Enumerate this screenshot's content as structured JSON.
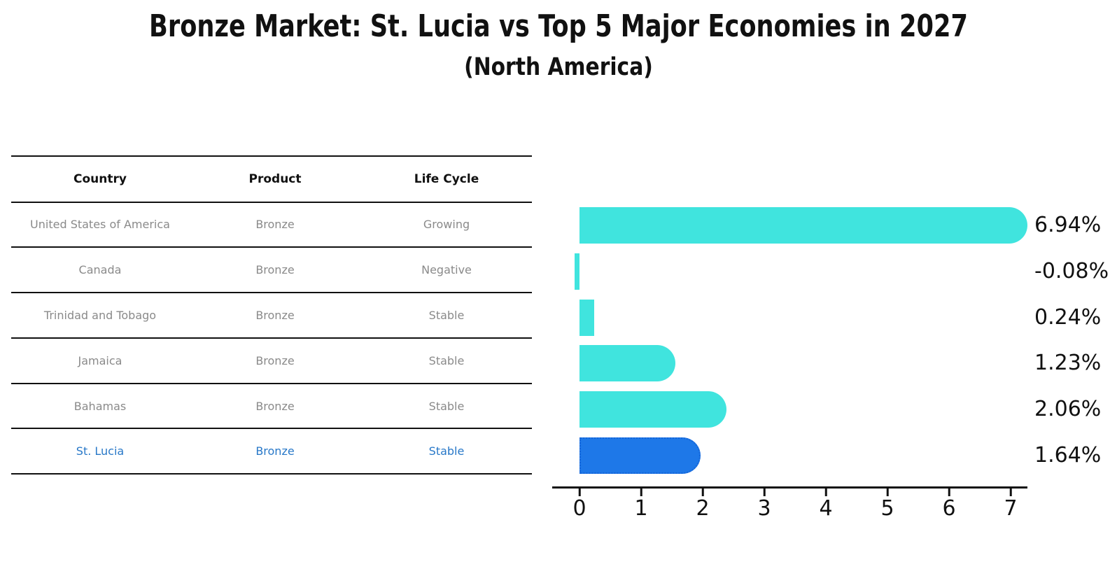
{
  "title": "Bronze Market: St. Lucia vs Top 5 Major Economies in 2027",
  "subtitle": "(North America)",
  "table": {
    "headers": {
      "country": "Country",
      "product": "Product",
      "life_cycle": "Life Cycle"
    },
    "rows": [
      {
        "country": "United States of America",
        "product": "Bronze",
        "life_cycle": "Growing"
      },
      {
        "country": "Canada",
        "product": "Bronze",
        "life_cycle": "Negative"
      },
      {
        "country": "Trinidad and Tobago",
        "product": "Bronze",
        "life_cycle": "Stable"
      },
      {
        "country": "Jamaica",
        "product": "Bronze",
        "life_cycle": "Stable"
      },
      {
        "country": "Bahamas",
        "product": "Bronze",
        "life_cycle": "Stable"
      },
      {
        "country": "St. Lucia",
        "product": "Bronze",
        "life_cycle": "Stable"
      }
    ],
    "highlighted_row": "St. Lucia"
  },
  "chart_data": {
    "type": "bar",
    "orientation": "horizontal",
    "categories": [
      "United States of America",
      "Canada",
      "Trinidad and Tobago",
      "Jamaica",
      "Bahamas",
      "St. Lucia"
    ],
    "values": [
      6.94,
      -0.08,
      0.24,
      1.23,
      2.06,
      1.64
    ],
    "value_labels": [
      "6.94%",
      "-0.08%",
      "0.24%",
      "1.23%",
      "2.06%",
      "1.64%"
    ],
    "title": "Bronze Market: St. Lucia vs Top 5 Major Economies in 2027",
    "subtitle": "(North America)",
    "xlabel": "",
    "ylabel": "",
    "xlim": [
      0,
      7
    ],
    "xticks": [
      0,
      1,
      2,
      3,
      4,
      5,
      6,
      7
    ],
    "grid": false,
    "legend": false,
    "highlight_index": 5
  },
  "colors": {
    "ink": "#111111",
    "row-text": "#8a8a8a",
    "highlight-text": "#2878c8",
    "bar-cyan": "#40e4de",
    "bar-blue": "#1e78e8",
    "bar-blue-border": "#1565d8"
  }
}
